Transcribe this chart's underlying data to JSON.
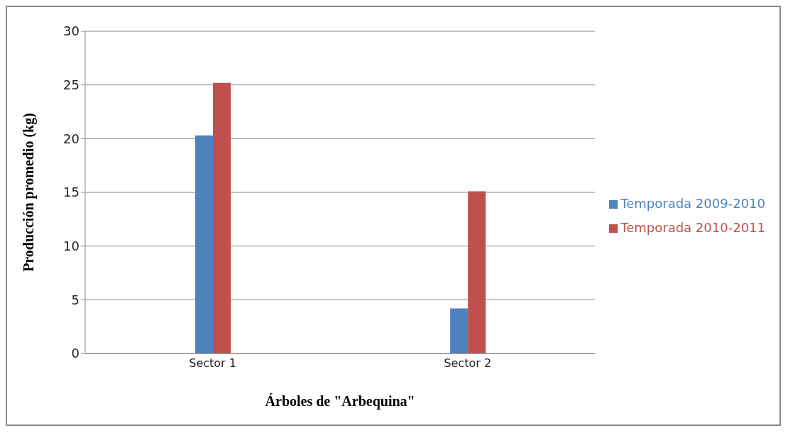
{
  "chart_data": {
    "type": "bar",
    "xlabel": "Árboles de \"Arbequina\"",
    "ylabel": "Producción promedio (kg)",
    "categories": [
      "Sector 1",
      "Sector 2"
    ],
    "series": [
      {
        "name": "Temporada 2009-2010",
        "color": "#4f81bd",
        "values": [
          20.3,
          4.2
        ]
      },
      {
        "name": "Temporada 2010-2011",
        "color": "#c0504d",
        "values": [
          25.2,
          15.1
        ]
      }
    ],
    "ylim": [
      0,
      30
    ],
    "yticks": [
      0,
      5,
      10,
      15,
      20,
      25,
      30
    ],
    "grid": "y",
    "legend": "right"
  }
}
